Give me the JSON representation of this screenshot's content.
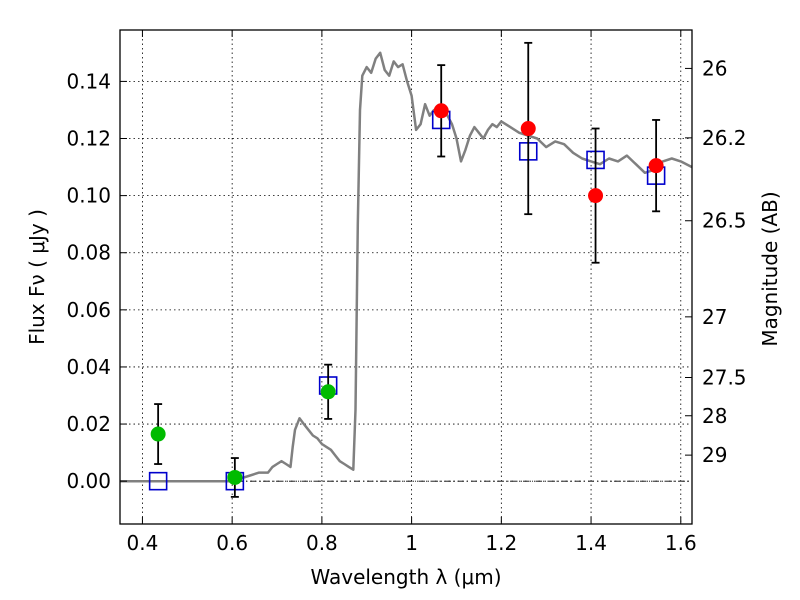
{
  "chart_data": {
    "type": "scatter",
    "xlabel": "Wavelength  λ (μm)",
    "ylabel": "Flux  Fν  ( μJy )",
    "ylabel_right": "Magnitude (AB)",
    "xlim": [
      0.35,
      1.625
    ],
    "ylim": [
      -0.015,
      0.158
    ],
    "grid": true,
    "x_ticks": [
      0.4,
      0.6,
      0.8,
      1.0,
      1.2,
      1.4,
      1.6
    ],
    "x_tick_labels": [
      "0.4",
      "0.6",
      "0.8",
      "1",
      "1.2",
      "1.4",
      "1.6"
    ],
    "y_ticks": [
      0.0,
      0.02,
      0.04,
      0.06,
      0.08,
      0.1,
      0.12,
      0.14
    ],
    "y_tick_labels": [
      "0.00",
      "0.02",
      "0.04",
      "0.06",
      "0.08",
      "0.10",
      "0.12",
      "0.14"
    ],
    "right_ticks": [
      {
        "label": "26",
        "mag": 26.0
      },
      {
        "label": "26.2",
        "mag": 26.2
      },
      {
        "label": "26.5",
        "mag": 26.5
      },
      {
        "label": "27",
        "mag": 27.0
      },
      {
        "label": "27.5",
        "mag": 27.5
      },
      {
        "label": "28",
        "mag": 28.0
      },
      {
        "label": "29",
        "mag": 29.0
      }
    ],
    "mag_zero_point": 23.9,
    "colors": {
      "model": "#808080",
      "observed_red": "#ff0000",
      "observed_green": "#00bb00",
      "model_box": "#0000cc",
      "errorbar": "#000000",
      "zero_line": "#000000"
    },
    "series": [
      {
        "kind": "line",
        "points": [
          [
            0.35,
            0.0
          ],
          [
            0.6,
            0.0
          ],
          [
            0.62,
            0.001
          ],
          [
            0.64,
            0.002
          ],
          [
            0.66,
            0.003
          ],
          [
            0.68,
            0.003
          ],
          [
            0.69,
            0.005
          ],
          [
            0.7,
            0.006
          ],
          [
            0.71,
            0.007
          ],
          [
            0.72,
            0.006
          ],
          [
            0.73,
            0.005
          ],
          [
            0.735,
            0.012
          ],
          [
            0.74,
            0.018
          ],
          [
            0.75,
            0.022
          ],
          [
            0.76,
            0.02
          ],
          [
            0.77,
            0.018
          ],
          [
            0.78,
            0.016
          ],
          [
            0.79,
            0.015
          ],
          [
            0.8,
            0.013
          ],
          [
            0.81,
            0.012
          ],
          [
            0.82,
            0.011
          ],
          [
            0.83,
            0.009
          ],
          [
            0.84,
            0.007
          ],
          [
            0.85,
            0.006
          ],
          [
            0.86,
            0.005
          ],
          [
            0.87,
            0.004
          ],
          [
            0.875,
            0.025
          ],
          [
            0.88,
            0.09
          ],
          [
            0.885,
            0.13
          ],
          [
            0.89,
            0.142
          ],
          [
            0.9,
            0.145
          ],
          [
            0.91,
            0.143
          ],
          [
            0.92,
            0.148
          ],
          [
            0.93,
            0.15
          ],
          [
            0.94,
            0.144
          ],
          [
            0.95,
            0.142
          ],
          [
            0.96,
            0.147
          ],
          [
            0.97,
            0.145
          ],
          [
            0.98,
            0.146
          ],
          [
            0.99,
            0.14
          ],
          [
            1.0,
            0.135
          ],
          [
            1.01,
            0.123
          ],
          [
            1.02,
            0.125
          ],
          [
            1.03,
            0.132
          ],
          [
            1.04,
            0.128
          ],
          [
            1.05,
            0.13
          ],
          [
            1.06,
            0.129
          ],
          [
            1.07,
            0.131
          ],
          [
            1.08,
            0.128
          ],
          [
            1.09,
            0.125
          ],
          [
            1.1,
            0.12
          ],
          [
            1.11,
            0.112
          ],
          [
            1.12,
            0.116
          ],
          [
            1.13,
            0.121
          ],
          [
            1.14,
            0.124
          ],
          [
            1.15,
            0.122
          ],
          [
            1.16,
            0.12
          ],
          [
            1.17,
            0.123
          ],
          [
            1.18,
            0.125
          ],
          [
            1.19,
            0.124
          ],
          [
            1.2,
            0.126
          ],
          [
            1.22,
            0.124
          ],
          [
            1.24,
            0.122
          ],
          [
            1.26,
            0.121
          ],
          [
            1.28,
            0.12
          ],
          [
            1.3,
            0.117
          ],
          [
            1.32,
            0.119
          ],
          [
            1.34,
            0.118
          ],
          [
            1.36,
            0.115
          ],
          [
            1.38,
            0.113
          ],
          [
            1.4,
            0.112
          ],
          [
            1.42,
            0.111
          ],
          [
            1.44,
            0.113
          ],
          [
            1.46,
            0.112
          ],
          [
            1.48,
            0.114
          ],
          [
            1.5,
            0.111
          ],
          [
            1.52,
            0.108
          ],
          [
            1.54,
            0.109
          ],
          [
            1.56,
            0.112
          ],
          [
            1.58,
            0.113
          ],
          [
            1.6,
            0.112
          ],
          [
            1.625,
            0.11
          ]
        ]
      },
      {
        "kind": "observed",
        "points": [
          {
            "x": 0.435,
            "y": 0.0165,
            "err": 0.0105,
            "color": "green"
          },
          {
            "x": 0.606,
            "y": 0.0013,
            "err": 0.0068,
            "color": "green"
          },
          {
            "x": 0.814,
            "y": 0.0313,
            "err": 0.0095,
            "color": "green"
          },
          {
            "x": 1.066,
            "y": 0.1297,
            "err": 0.016,
            "color": "red"
          },
          {
            "x": 1.26,
            "y": 0.1235,
            "err": 0.03,
            "color": "red"
          },
          {
            "x": 1.41,
            "y": 0.1,
            "err": 0.0235,
            "color": "red"
          },
          {
            "x": 1.545,
            "y": 0.1105,
            "err": 0.016,
            "color": "red"
          }
        ]
      },
      {
        "kind": "model_photometry",
        "points": [
          {
            "x": 0.435,
            "y": 0.0
          },
          {
            "x": 0.606,
            "y": 0.0
          },
          {
            "x": 0.814,
            "y": 0.0335
          },
          {
            "x": 1.066,
            "y": 0.1265
          },
          {
            "x": 1.26,
            "y": 0.1155
          },
          {
            "x": 1.41,
            "y": 0.1125
          },
          {
            "x": 1.545,
            "y": 0.107
          }
        ]
      }
    ]
  }
}
